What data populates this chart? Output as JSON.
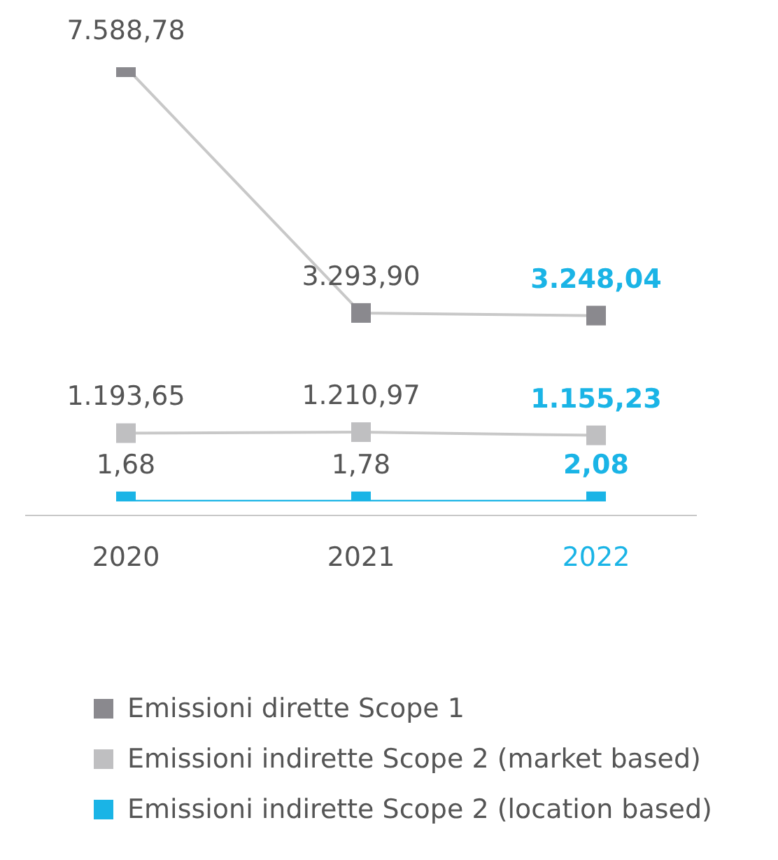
{
  "chart_data": {
    "type": "line",
    "categories": [
      "2020",
      "2021",
      "2022"
    ],
    "series": [
      {
        "name": "Emissioni dirette Scope 1",
        "color": "#8a898e",
        "values": [
          7588.78,
          3293.9,
          3248.04
        ],
        "value_labels": [
          "7.588,78",
          "3.293,90",
          "3.248,04"
        ]
      },
      {
        "name": "Emissioni indirette Scope 2 (market based)",
        "color": "#bfbfc1",
        "values": [
          1193.65,
          1210.97,
          1155.23
        ],
        "value_labels": [
          "1.193,65",
          "1.210,97",
          "1.155,23"
        ]
      },
      {
        "name": "Emissioni indirette Scope 2 (location based)",
        "color": "#1ab4e6",
        "values": [
          1.68,
          1.78,
          2.08
        ],
        "value_labels": [
          "1,68",
          "1,78",
          "2,08"
        ]
      }
    ],
    "tick_labels": "x",
    "marker": "square",
    "line_style": "solid",
    "legend": "bottom"
  }
}
